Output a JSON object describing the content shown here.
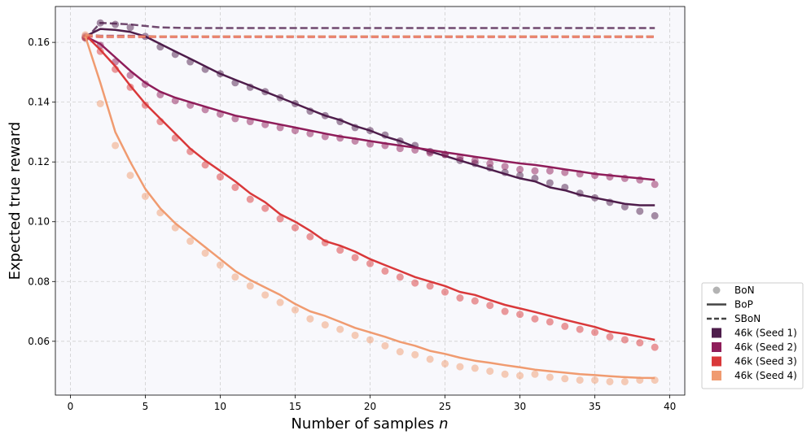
{
  "chart_data": {
    "type": "line",
    "title": "",
    "xlabel": "Number of samples",
    "xlabel_var": "n",
    "ylabel": "Expected true reward",
    "xlim": [
      -1,
      41
    ],
    "ylim": [
      0.042,
      0.172
    ],
    "xticks": [
      0,
      5,
      10,
      15,
      20,
      25,
      30,
      35,
      40
    ],
    "yticks": [
      0.06,
      0.08,
      0.1,
      0.12,
      0.14,
      0.16
    ],
    "ytick_labels": [
      "0.06",
      "0.08",
      "0.10",
      "0.12",
      "0.14",
      "0.16"
    ],
    "grid": true,
    "legend_position": "outside bottom-right",
    "legend": {
      "style_entries": [
        {
          "label": "BoN",
          "kind": "marker"
        },
        {
          "label": "BoP",
          "kind": "solid"
        },
        {
          "label": "SBoN",
          "kind": "dashed"
        }
      ],
      "color_entries": [
        {
          "label": "46k (Seed 1)",
          "color": "#4e1d4b"
        },
        {
          "label": "46k (Seed 2)",
          "color": "#8f1d5a"
        },
        {
          "label": "46k (Seed 3)",
          "color": "#d9383a"
        },
        {
          "label": "46k (Seed 4)",
          "color": "#f09b70"
        }
      ]
    },
    "series": [
      {
        "name": "46k (Seed 1)",
        "color": "#4e1d4b",
        "bon": {
          "x": [
            1,
            2,
            3,
            4,
            5,
            6,
            7,
            8,
            9,
            10,
            11,
            12,
            13,
            14,
            15,
            16,
            17,
            18,
            19,
            20,
            21,
            22,
            23,
            24,
            25,
            26,
            27,
            28,
            29,
            30,
            31,
            32,
            33,
            34,
            35,
            36,
            37,
            38,
            39
          ],
          "y": [
            0.1615,
            0.1665,
            0.166,
            0.165,
            0.162,
            0.1585,
            0.156,
            0.1535,
            0.151,
            0.1495,
            0.1465,
            0.145,
            0.1435,
            0.1415,
            0.1395,
            0.137,
            0.1355,
            0.1335,
            0.1315,
            0.1305,
            0.129,
            0.127,
            0.1255,
            0.1235,
            0.1225,
            0.1205,
            0.1195,
            0.118,
            0.1165,
            0.1155,
            0.1145,
            0.113,
            0.1115,
            0.1095,
            0.108,
            0.1065,
            0.105,
            0.1035,
            0.102
          ]
        },
        "bop": {
          "x": [
            1,
            2,
            3,
            4,
            5,
            6,
            7,
            8,
            9,
            10,
            11,
            12,
            13,
            14,
            15,
            16,
            17,
            18,
            19,
            20,
            21,
            22,
            23,
            24,
            25,
            26,
            27,
            28,
            29,
            30,
            31,
            32,
            33,
            34,
            35,
            36,
            37,
            38,
            39
          ],
          "y": [
            0.162,
            0.1645,
            0.1642,
            0.1635,
            0.162,
            0.1595,
            0.157,
            0.1545,
            0.152,
            0.1495,
            0.1475,
            0.1455,
            0.1435,
            0.1415,
            0.1395,
            0.1375,
            0.1355,
            0.134,
            0.132,
            0.1305,
            0.1285,
            0.127,
            0.125,
            0.1235,
            0.122,
            0.1205,
            0.119,
            0.1175,
            0.116,
            0.1145,
            0.1135,
            0.1115,
            0.1105,
            0.109,
            0.108,
            0.107,
            0.106,
            0.1055,
            0.1055
          ]
        },
        "sbon": {
          "x": [
            1,
            2,
            3,
            4,
            5,
            6,
            7,
            8,
            9,
            10,
            11,
            12,
            13,
            14,
            15,
            16,
            17,
            18,
            19,
            20,
            21,
            22,
            23,
            24,
            25,
            26,
            27,
            28,
            29,
            30,
            31,
            32,
            33,
            34,
            35,
            36,
            37,
            38,
            39
          ],
          "y": [
            0.161,
            0.1665,
            0.1663,
            0.166,
            0.1655,
            0.165,
            0.1649,
            0.1648,
            0.1648,
            0.1648,
            0.1648,
            0.1648,
            0.1648,
            0.1648,
            0.1648,
            0.1648,
            0.1648,
            0.1648,
            0.1648,
            0.1648,
            0.1648,
            0.1648,
            0.1648,
            0.1648,
            0.1648,
            0.1648,
            0.1648,
            0.1648,
            0.1648,
            0.1648,
            0.1648,
            0.1648,
            0.1648,
            0.1648,
            0.1648,
            0.1648,
            0.1648,
            0.1648,
            0.1648
          ]
        }
      },
      {
        "name": "46k (Seed 2)",
        "color": "#8f1d5a",
        "bon": {
          "x": [
            1,
            2,
            3,
            4,
            5,
            6,
            7,
            8,
            9,
            10,
            11,
            12,
            13,
            14,
            15,
            16,
            17,
            18,
            19,
            20,
            21,
            22,
            23,
            24,
            25,
            26,
            27,
            28,
            29,
            30,
            31,
            32,
            33,
            34,
            35,
            36,
            37,
            38,
            39
          ],
          "y": [
            0.162,
            0.159,
            0.1535,
            0.149,
            0.146,
            0.1425,
            0.1405,
            0.139,
            0.1375,
            0.136,
            0.1345,
            0.1335,
            0.1325,
            0.1315,
            0.1305,
            0.1295,
            0.1285,
            0.128,
            0.127,
            0.126,
            0.1255,
            0.1245,
            0.124,
            0.123,
            0.1225,
            0.1215,
            0.1205,
            0.1195,
            0.1185,
            0.1175,
            0.117,
            0.117,
            0.1165,
            0.116,
            0.1155,
            0.115,
            0.1145,
            0.114,
            0.1125
          ]
        },
        "bop": {
          "x": [
            1,
            2,
            3,
            4,
            5,
            6,
            7,
            8,
            9,
            10,
            11,
            12,
            13,
            14,
            15,
            16,
            17,
            18,
            19,
            20,
            21,
            22,
            23,
            24,
            25,
            26,
            27,
            28,
            29,
            30,
            31,
            32,
            33,
            34,
            35,
            36,
            37,
            38,
            39
          ],
          "y": [
            0.162,
            0.1595,
            0.155,
            0.1505,
            0.1465,
            0.1435,
            0.1415,
            0.14,
            0.1385,
            0.137,
            0.1355,
            0.1345,
            0.1335,
            0.1325,
            0.1315,
            0.1305,
            0.1295,
            0.1285,
            0.1278,
            0.127,
            0.1262,
            0.1255,
            0.1248,
            0.124,
            0.1232,
            0.1225,
            0.1217,
            0.121,
            0.1202,
            0.1195,
            0.119,
            0.1183,
            0.1175,
            0.1168,
            0.116,
            0.1155,
            0.115,
            0.1145,
            0.114
          ]
        },
        "sbon": {
          "x": [
            1,
            2,
            3,
            4,
            5,
            6,
            7,
            8,
            9,
            10,
            11,
            12,
            13,
            14,
            15,
            16,
            17,
            18,
            19,
            20,
            21,
            22,
            23,
            24,
            25,
            26,
            27,
            28,
            29,
            30,
            31,
            32,
            33,
            34,
            35,
            36,
            37,
            38,
            39
          ],
          "y": [
            0.1625,
            0.1622,
            0.1622,
            0.1622,
            0.1621,
            0.162,
            0.162,
            0.162,
            0.162,
            0.162,
            0.162,
            0.162,
            0.162,
            0.162,
            0.162,
            0.162,
            0.162,
            0.162,
            0.162,
            0.162,
            0.162,
            0.162,
            0.162,
            0.162,
            0.162,
            0.162,
            0.162,
            0.162,
            0.162,
            0.162,
            0.162,
            0.162,
            0.162,
            0.162,
            0.162,
            0.162,
            0.162,
            0.162,
            0.162
          ]
        }
      },
      {
        "name": "46k (Seed 3)",
        "color": "#d9383a",
        "bon": {
          "x": [
            1,
            2,
            3,
            4,
            5,
            6,
            7,
            8,
            9,
            10,
            11,
            12,
            13,
            14,
            15,
            16,
            17,
            18,
            19,
            20,
            21,
            22,
            23,
            24,
            25,
            26,
            27,
            28,
            29,
            30,
            31,
            32,
            33,
            34,
            35,
            36,
            37,
            38,
            39
          ],
          "y": [
            0.1615,
            0.157,
            0.151,
            0.145,
            0.139,
            0.1335,
            0.128,
            0.1235,
            0.119,
            0.115,
            0.1115,
            0.1075,
            0.1045,
            0.101,
            0.098,
            0.095,
            0.093,
            0.0905,
            0.088,
            0.086,
            0.0835,
            0.0815,
            0.0795,
            0.0785,
            0.0765,
            0.0745,
            0.0735,
            0.072,
            0.07,
            0.069,
            0.0675,
            0.0665,
            0.065,
            0.064,
            0.063,
            0.0615,
            0.0605,
            0.0595,
            0.058
          ]
        },
        "bop": {
          "x": [
            1,
            2,
            3,
            4,
            5,
            6,
            7,
            8,
            9,
            10,
            11,
            12,
            13,
            14,
            15,
            16,
            17,
            18,
            19,
            20,
            21,
            22,
            23,
            24,
            25,
            26,
            27,
            28,
            29,
            30,
            31,
            32,
            33,
            34,
            35,
            36,
            37,
            38,
            39
          ],
          "y": [
            0.1625,
            0.1575,
            0.152,
            0.1455,
            0.1395,
            0.1345,
            0.1295,
            0.1245,
            0.1205,
            0.117,
            0.1135,
            0.1095,
            0.1065,
            0.1025,
            0.1,
            0.097,
            0.0935,
            0.092,
            0.09,
            0.0875,
            0.0855,
            0.0835,
            0.0815,
            0.08,
            0.0785,
            0.0765,
            0.0755,
            0.0738,
            0.0722,
            0.071,
            0.0698,
            0.0685,
            0.0672,
            0.066,
            0.0648,
            0.0632,
            0.0625,
            0.0615,
            0.0605
          ]
        },
        "sbon": {
          "x": [
            1,
            2,
            3,
            4,
            5,
            6,
            7,
            8,
            9,
            10,
            11,
            12,
            13,
            14,
            15,
            16,
            17,
            18,
            19,
            20,
            21,
            22,
            23,
            24,
            25,
            26,
            27,
            28,
            29,
            30,
            31,
            32,
            33,
            34,
            35,
            36,
            37,
            38,
            39
          ],
          "y": [
            0.162,
            0.1618,
            0.1618,
            0.1618,
            0.1618,
            0.1618,
            0.1618,
            0.1618,
            0.1618,
            0.1618,
            0.1618,
            0.1618,
            0.1618,
            0.1618,
            0.1618,
            0.1618,
            0.1618,
            0.1618,
            0.1618,
            0.1618,
            0.1618,
            0.1618,
            0.1618,
            0.1618,
            0.1618,
            0.1618,
            0.1618,
            0.1618,
            0.1618,
            0.1618,
            0.1618,
            0.1618,
            0.1618,
            0.1618,
            0.1618,
            0.1618,
            0.1618,
            0.1618,
            0.1618
          ]
        }
      },
      {
        "name": "46k (Seed 4)",
        "color": "#f09b70",
        "bon": {
          "x": [
            1,
            2,
            3,
            4,
            5,
            6,
            7,
            8,
            9,
            10,
            11,
            12,
            13,
            14,
            15,
            16,
            17,
            18,
            19,
            20,
            21,
            22,
            23,
            24,
            25,
            26,
            27,
            28,
            29,
            30,
            31,
            32,
            33,
            34,
            35,
            36,
            37,
            38,
            39
          ],
          "y": [
            0.1625,
            0.1395,
            0.1255,
            0.1155,
            0.1085,
            0.103,
            0.098,
            0.0935,
            0.0895,
            0.0855,
            0.0815,
            0.0785,
            0.0755,
            0.073,
            0.0705,
            0.0675,
            0.0655,
            0.064,
            0.062,
            0.0605,
            0.0585,
            0.0565,
            0.0555,
            0.054,
            0.0525,
            0.0515,
            0.051,
            0.05,
            0.049,
            0.0485,
            0.049,
            0.048,
            0.0475,
            0.047,
            0.047,
            0.0465,
            0.0465,
            0.047,
            0.047
          ]
        },
        "bop": {
          "x": [
            1,
            2,
            3,
            4,
            5,
            6,
            7,
            8,
            9,
            10,
            11,
            12,
            13,
            14,
            15,
            16,
            17,
            18,
            19,
            20,
            21,
            22,
            23,
            24,
            25,
            26,
            27,
            28,
            29,
            30,
            31,
            32,
            33,
            34,
            35,
            36,
            37,
            38,
            39
          ],
          "y": [
            0.162,
            0.1465,
            0.13,
            0.12,
            0.111,
            0.1045,
            0.0995,
            0.0955,
            0.0915,
            0.0875,
            0.0835,
            0.0805,
            0.078,
            0.0755,
            0.0725,
            0.07,
            0.0685,
            0.0665,
            0.0645,
            0.063,
            0.0615,
            0.0598,
            0.0585,
            0.0568,
            0.0558,
            0.0545,
            0.0535,
            0.0528,
            0.052,
            0.0513,
            0.0505,
            0.05,
            0.0495,
            0.049,
            0.0487,
            0.0483,
            0.048,
            0.0478,
            0.0477
          ]
        },
        "sbon": {
          "x": [
            1,
            2,
            3,
            4,
            5,
            6,
            7,
            8,
            9,
            10,
            11,
            12,
            13,
            14,
            15,
            16,
            17,
            18,
            19,
            20,
            21,
            22,
            23,
            24,
            25,
            26,
            27,
            28,
            29,
            30,
            31,
            32,
            33,
            34,
            35,
            36,
            37,
            38,
            39
          ],
          "y": [
            0.1625,
            0.1621,
            0.162,
            0.162,
            0.162,
            0.162,
            0.162,
            0.162,
            0.162,
            0.162,
            0.162,
            0.162,
            0.162,
            0.162,
            0.162,
            0.162,
            0.162,
            0.162,
            0.162,
            0.162,
            0.162,
            0.162,
            0.162,
            0.162,
            0.162,
            0.162,
            0.162,
            0.162,
            0.162,
            0.162,
            0.162,
            0.162,
            0.162,
            0.162,
            0.162,
            0.162,
            0.162,
            0.162,
            0.162
          ]
        }
      }
    ]
  },
  "colors": {
    "plot_background": "#f8f8fc",
    "grid": "#cfcfcf",
    "legend_marker_gray": "#a0a0a0",
    "legend_line_gray": "#444444"
  }
}
